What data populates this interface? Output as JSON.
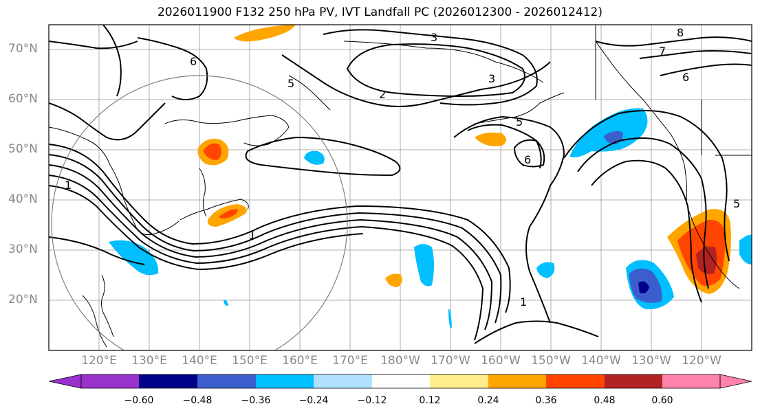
{
  "title": "2026011900 F132 250 hPa PV, IVT Landfall PC (2026012300 - 2026012412)",
  "map": {
    "projection": "PlateCarree",
    "lon_range": [
      110,
      250
    ],
    "lat_range": [
      10,
      75
    ],
    "lat_ticks": [
      "70°N",
      "60°N",
      "50°N",
      "40°N",
      "30°N",
      "20°N"
    ],
    "lon_ticks": [
      "120°E",
      "130°E",
      "140°E",
      "150°E",
      "160°E",
      "170°E",
      "180°W",
      "170°W",
      "160°W",
      "150°W",
      "140°W",
      "130°W",
      "120°W"
    ],
    "contour_labels": [
      "3",
      "6",
      "5",
      "2",
      "3",
      "8",
      "7",
      "6",
      "5",
      "6",
      "1",
      "1",
      "5",
      "1"
    ],
    "contour_color": "#000000",
    "gridline_color": "#999999",
    "circle_color": "#808080"
  },
  "colorbar": {
    "ticks": [
      "−0.60",
      "−0.48",
      "−0.36",
      "−0.24",
      "−0.12",
      "0.12",
      "0.24",
      "0.36",
      "0.48",
      "0.60"
    ],
    "colors": [
      "#9932cc",
      "#00008b",
      "#3a5fcd",
      "#00bfff",
      "#b0e2ff",
      "#ffffff",
      "#ffec8b",
      "#ffa500",
      "#ff4500",
      "#b22222",
      "#ff82ab"
    ]
  }
}
